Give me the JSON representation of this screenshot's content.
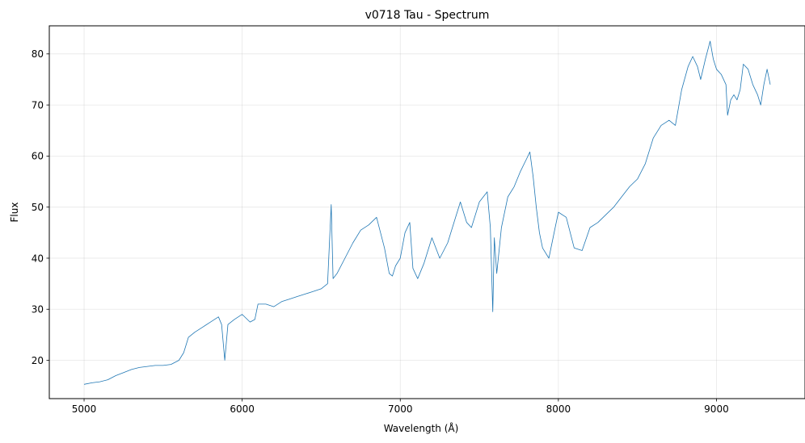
{
  "chart_data": {
    "type": "line",
    "title": "v0718 Tau - Spectrum",
    "xlabel": "Wavelength (Å)",
    "ylabel": "Flux",
    "xlim": [
      4780,
      9560
    ],
    "ylim": [
      12.5,
      85.5
    ],
    "xticks": [
      5000,
      6000,
      7000,
      8000,
      9000
    ],
    "yticks": [
      20,
      30,
      40,
      50,
      60,
      70,
      80
    ],
    "grid": true,
    "line_color": "#1f77b4",
    "series": [
      {
        "name": "v0718 Tau",
        "x": [
          5000,
          5050,
          5100,
          5150,
          5200,
          5250,
          5300,
          5350,
          5400,
          5450,
          5500,
          5550,
          5600,
          5630,
          5660,
          5700,
          5750,
          5800,
          5850,
          5870,
          5890,
          5910,
          5950,
          6000,
          6050,
          6080,
          6100,
          6150,
          6200,
          6250,
          6300,
          6350,
          6400,
          6450,
          6500,
          6540,
          6563,
          6575,
          6600,
          6650,
          6700,
          6750,
          6800,
          6850,
          6900,
          6930,
          6950,
          6970,
          7000,
          7030,
          7060,
          7080,
          7110,
          7150,
          7200,
          7250,
          7300,
          7350,
          7380,
          7420,
          7450,
          7500,
          7550,
          7570,
          7585,
          7595,
          7610,
          7640,
          7680,
          7720,
          7760,
          7800,
          7820,
          7840,
          7860,
          7880,
          7900,
          7940,
          7980,
          8000,
          8050,
          8100,
          8150,
          8200,
          8250,
          8300,
          8350,
          8400,
          8450,
          8500,
          8550,
          8600,
          8650,
          8700,
          8740,
          8780,
          8820,
          8850,
          8880,
          8900,
          8930,
          8960,
          8980,
          9000,
          9030,
          9060,
          9070,
          9090,
          9110,
          9130,
          9150,
          9170,
          9200,
          9230,
          9260,
          9280,
          9300,
          9320,
          9340
        ],
        "y": [
          15.3,
          15.6,
          15.8,
          16.2,
          17.0,
          17.6,
          18.2,
          18.6,
          18.8,
          19.0,
          19.0,
          19.2,
          20.0,
          21.5,
          24.5,
          25.5,
          26.5,
          27.5,
          28.5,
          27.0,
          20.0,
          27.0,
          28.0,
          29.0,
          27.5,
          28.0,
          31.0,
          31.0,
          30.5,
          31.5,
          32.0,
          32.5,
          33.0,
          33.5,
          34.0,
          35.0,
          50.5,
          36.0,
          37.0,
          40.0,
          43.0,
          45.5,
          46.5,
          48.0,
          42.0,
          37.0,
          36.5,
          38.5,
          40.0,
          45.0,
          47.0,
          38.0,
          36.0,
          39.0,
          44.0,
          40.0,
          43.0,
          48.0,
          51.0,
          47.0,
          46.0,
          51.0,
          53.0,
          46.0,
          29.5,
          44.0,
          37.0,
          46.0,
          52.0,
          54.0,
          57.0,
          59.5,
          60.8,
          56.0,
          50.0,
          45.0,
          42.0,
          40.0,
          46.0,
          49.0,
          48.0,
          42.0,
          41.5,
          46.0,
          47.0,
          48.5,
          50.0,
          52.0,
          54.0,
          55.5,
          58.5,
          63.5,
          66.0,
          67.0,
          66.0,
          73.0,
          77.5,
          79.5,
          77.5,
          75.0,
          79.0,
          82.5,
          79.0,
          77.0,
          76.0,
          74.0,
          68.0,
          71.0,
          72.0,
          71.0,
          73.0,
          78.0,
          77.0,
          74.0,
          72.0,
          70.0,
          74.0,
          77.0,
          74.0
        ]
      }
    ]
  }
}
